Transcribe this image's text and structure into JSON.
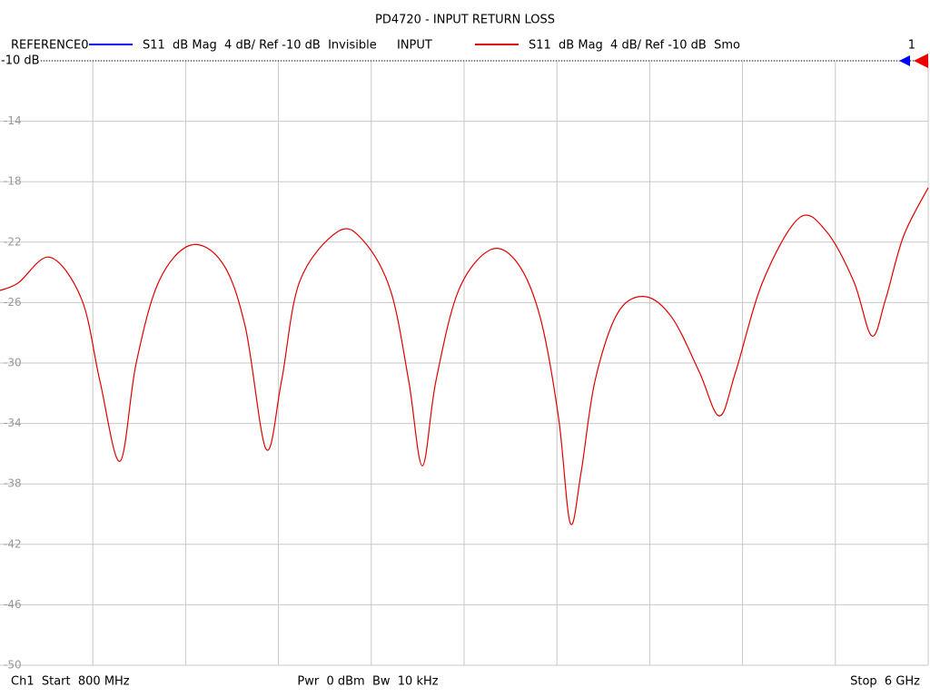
{
  "chart_data": {
    "type": "line",
    "title": "PD4720 - INPUT RETURN LOSS",
    "x": [
      800,
      902,
      1080,
      1258,
      1360,
      1472,
      1563,
      1690,
      1868,
      2047,
      2174,
      2291,
      2377,
      2479,
      2693,
      2835,
      2988,
      3090,
      3166,
      3242,
      3369,
      3548,
      3700,
      3827,
      3929,
      3995,
      4056,
      4133,
      4260,
      4412,
      4565,
      4718,
      4830,
      4921,
      5074,
      5277,
      5430,
      5583,
      5684,
      5761,
      5862,
      6000
    ],
    "series": [
      {
        "name": "REFERENCE0",
        "color": "#0000ff",
        "description": "S11  dB Mag  4 dB/ Ref -10 dB  Invisible",
        "visible": false
      },
      {
        "name": "INPUT",
        "color": "#e00000",
        "description": "S11  dB Mag  4 dB/ Ref -10 dB  Smo",
        "visible": true,
        "values": [
          -25.2,
          -24.7,
          -23.0,
          -25.8,
          -31.2,
          -36.5,
          -30.0,
          -24.6,
          -22.2,
          -23.4,
          -27.6,
          -35.7,
          -31.2,
          -24.6,
          -21.3,
          -21.9,
          -25.2,
          -31.2,
          -36.8,
          -31.2,
          -25.2,
          -22.5,
          -23.4,
          -27.0,
          -33.6,
          -40.6,
          -37.2,
          -31.2,
          -26.7,
          -25.6,
          -27.0,
          -30.6,
          -33.5,
          -30.6,
          -24.6,
          -20.4,
          -21.3,
          -24.6,
          -28.2,
          -25.8,
          -21.6,
          -18.4
        ]
      }
    ],
    "xlim": [
      800,
      6000
    ],
    "xgrid": [
      1320,
      1840,
      2360,
      2880,
      3400,
      3920,
      4440,
      4960,
      5480,
      6000
    ],
    "ylim": [
      -10,
      -50
    ],
    "yticks": [
      -10,
      -14,
      -18,
      -22,
      -26,
      -30,
      -34,
      -38,
      -42,
      -46,
      -50
    ],
    "grid": true,
    "ref_level": -10,
    "ref_label": "-10 dB",
    "trace_number": "1",
    "footer": {
      "left": "Ch1  Start  800 MHz",
      "center": "Pwr  0 dBm  Bw  10 kHz",
      "right": "Stop  6 GHz"
    }
  }
}
